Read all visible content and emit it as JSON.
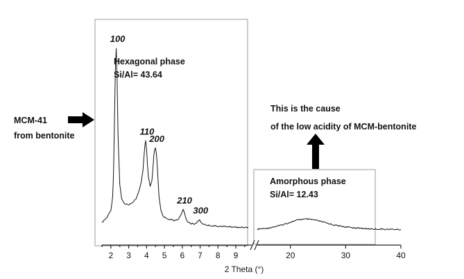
{
  "chart_data": {
    "type": "line",
    "xlabel": "2 Theta (°)",
    "axis_break": [
      9.7,
      14
    ],
    "segments": [
      {
        "name": "Hexagonal phase",
        "xlim": [
          1.5,
          9.7
        ],
        "ticks": [
          2,
          3,
          4,
          5,
          6,
          7,
          8,
          9
        ],
        "x": [
          1.5,
          1.6,
          1.8,
          2.0,
          2.1,
          2.15,
          2.2,
          2.25,
          2.3,
          2.35,
          2.4,
          2.5,
          2.6,
          2.8,
          3.0,
          3.2,
          3.4,
          3.6,
          3.7,
          3.8,
          3.85,
          3.9,
          3.95,
          4.0,
          4.05,
          4.1,
          4.2,
          4.3,
          4.35,
          4.4,
          4.45,
          4.5,
          4.55,
          4.6,
          4.65,
          4.7,
          4.8,
          4.9,
          5.0,
          5.2,
          5.4,
          5.6,
          5.8,
          5.9,
          6.0,
          6.05,
          6.1,
          6.2,
          6.3,
          6.5,
          6.7,
          6.8,
          6.9,
          6.95,
          7.0,
          7.1,
          7.3,
          7.6,
          8.0,
          8.5,
          9.0,
          9.7
        ],
        "y": [
          4,
          5,
          7,
          11,
          18,
          32,
          60,
          88,
          100,
          82,
          52,
          25,
          17,
          14,
          14,
          15,
          17,
          22,
          26,
          33,
          40,
          46,
          49,
          44,
          36,
          29,
          24,
          27,
          33,
          40,
          44,
          45,
          42,
          35,
          26,
          18,
          11,
          8,
          7,
          6,
          5.5,
          5,
          6,
          8,
          10,
          11,
          10,
          6.5,
          4.5,
          3.5,
          3,
          4,
          5,
          5.5,
          5,
          3.5,
          2.8,
          2.3,
          2,
          1.8,
          1.5,
          1.2
        ],
        "ylim": [
          -5,
          106
        ]
      },
      {
        "name": "Amorphous phase",
        "xlim": [
          14,
          40
        ],
        "ticks": [
          20,
          30,
          40
        ],
        "x": [
          14,
          16,
          18,
          19,
          20,
          21,
          22,
          23,
          24,
          25,
          26,
          27,
          28,
          30,
          32,
          34,
          36,
          38,
          40
        ],
        "y": [
          0.3,
          1.0,
          2.3,
          3.2,
          4.2,
          5.2,
          5.8,
          5.9,
          5.6,
          5.0,
          4.2,
          3.4,
          2.6,
          1.6,
          1.0,
          0.6,
          0.4,
          0.3,
          0.2
        ],
        "ylim": [
          -5,
          106
        ]
      }
    ],
    "peak_labels": [
      {
        "label": "100",
        "x": 2.3
      },
      {
        "label": "110",
        "x": 3.95
      },
      {
        "label": "200",
        "x": 4.5
      },
      {
        "label": "210",
        "x": 6.05
      },
      {
        "label": "300",
        "x": 6.95
      }
    ],
    "annotations": {
      "hexagonal": {
        "line1": "Hexagonal phase",
        "line2": "Si/Al= 43.64"
      },
      "amorphous": {
        "line1": "Amorphous phase",
        "line2": "Si/Al= 12.43"
      },
      "sample": {
        "line1": "MCM-41",
        "line2": "from bentonite"
      },
      "cause": {
        "line1": "This is the cause",
        "line2": "of the low acidity of MCM-bentonite"
      }
    }
  }
}
